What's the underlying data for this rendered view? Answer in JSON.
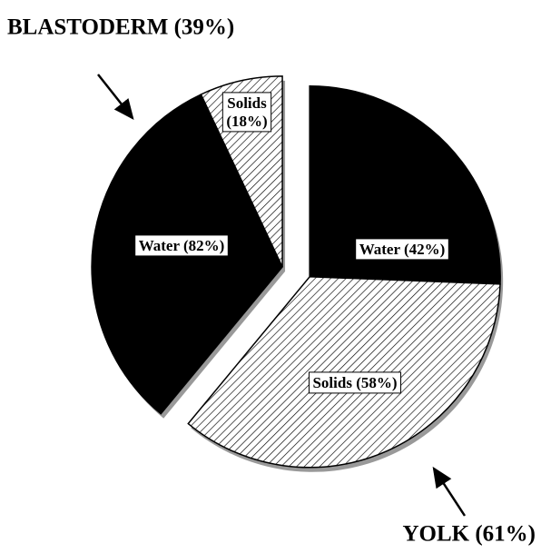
{
  "chart_data": {
    "type": "pie",
    "fills": [
      "#000000",
      "hatched"
    ],
    "groups": [
      {
        "label": "YOLK (61%)",
        "value": 61,
        "values": [
          42,
          58
        ],
        "value_labels": [
          "Water (42%)",
          "Solids (58%)"
        ]
      },
      {
        "label": "BLASTODERM (39%)",
        "value": 39,
        "values": [
          82,
          18
        ],
        "value_labels": [
          "Water (82%)",
          "Solids (18%)"
        ]
      }
    ]
  }
}
